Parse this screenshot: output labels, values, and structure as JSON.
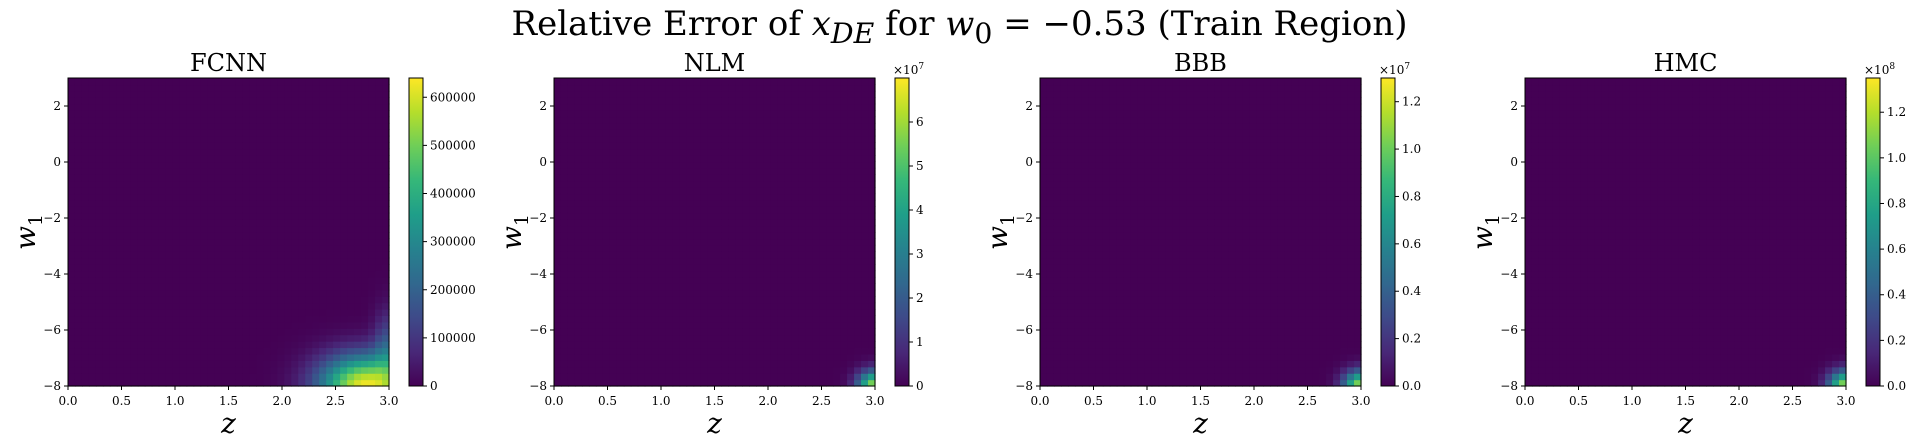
{
  "title_parts": {
    "pre": "Relative Error of ",
    "var": "x",
    "var_sub": "DE",
    "mid": " for ",
    "param": "w",
    "param_sub": "0",
    "post": " = −0.53 (Train Region)"
  },
  "chart_data": [
    {
      "type": "heatmap",
      "title": "FCNN",
      "xlabel": "z",
      "ylabel": "w",
      "ylabel_sub": "1",
      "xlim": [
        0,
        3.0
      ],
      "ylim": [
        -8,
        3
      ],
      "xticks": [
        "0.0",
        "0.5",
        "1.0",
        "1.5",
        "2.0",
        "2.5",
        "3.0"
      ],
      "yticks": [
        "−8",
        "−6",
        "−4",
        "−2",
        "0",
        "2"
      ],
      "colorbar": {
        "min": 0,
        "max": 640000,
        "multiplier": "",
        "ticks": [
          "0",
          "100000",
          "200000",
          "300000",
          "400000",
          "500000",
          "600000"
        ],
        "tick_values": [
          0,
          100000,
          200000,
          300000,
          400000,
          500000,
          600000
        ]
      },
      "hotspot": {
        "z_center": 2.78,
        "w1_center": -8.0,
        "peak_fraction": 0.98,
        "spread": "wide"
      }
    },
    {
      "type": "heatmap",
      "title": "NLM",
      "xlabel": "z",
      "ylabel": "w",
      "ylabel_sub": "1",
      "xlim": [
        0,
        3.0
      ],
      "ylim": [
        -8,
        3
      ],
      "xticks": [
        "0.0",
        "0.5",
        "1.0",
        "1.5",
        "2.0",
        "2.5",
        "3.0"
      ],
      "yticks": [
        "−8",
        "−6",
        "−4",
        "−2",
        "0",
        "2"
      ],
      "colorbar": {
        "min": 0,
        "max": 7,
        "multiplier": "×10",
        "multiplier_exp": "7",
        "ticks": [
          "0",
          "1",
          "2",
          "3",
          "4",
          "5",
          "6"
        ],
        "tick_values": [
          0,
          1,
          2,
          3,
          4,
          5,
          6
        ]
      },
      "hotspot": {
        "z_center": 3.0,
        "w1_center": -8.0,
        "peak_fraction": 0.85,
        "spread": "narrow"
      }
    },
    {
      "type": "heatmap",
      "title": "BBB",
      "xlabel": "z",
      "ylabel": "w",
      "ylabel_sub": "1",
      "xlim": [
        0,
        3.0
      ],
      "ylim": [
        -8,
        3
      ],
      "xticks": [
        "0.0",
        "0.5",
        "1.0",
        "1.5",
        "2.0",
        "2.5",
        "3.0"
      ],
      "yticks": [
        "−8",
        "−6",
        "−4",
        "−2",
        "0",
        "2"
      ],
      "colorbar": {
        "min": 0,
        "max": 1.3,
        "multiplier": "×10",
        "multiplier_exp": "7",
        "ticks": [
          "0.0",
          "0.2",
          "0.4",
          "0.6",
          "0.8",
          "1.0",
          "1.2"
        ],
        "tick_values": [
          0,
          0.2,
          0.4,
          0.6,
          0.8,
          1.0,
          1.2
        ]
      },
      "hotspot": {
        "z_center": 3.0,
        "w1_center": -8.0,
        "peak_fraction": 0.85,
        "spread": "narrow"
      }
    },
    {
      "type": "heatmap",
      "title": "HMC",
      "xlabel": "z",
      "ylabel": "w",
      "ylabel_sub": "1",
      "xlim": [
        0,
        3.0
      ],
      "ylim": [
        -8,
        3
      ],
      "xticks": [
        "0.0",
        "0.5",
        "1.0",
        "1.5",
        "2.0",
        "2.5",
        "3.0"
      ],
      "yticks": [
        "−8",
        "−6",
        "−4",
        "−2",
        "0",
        "2"
      ],
      "colorbar": {
        "min": 0,
        "max": 1.35,
        "multiplier": "×10",
        "multiplier_exp": "8",
        "ticks": [
          "0.0",
          "0.2",
          "0.4",
          "0.6",
          "0.8",
          "1.0",
          "1.2"
        ],
        "tick_values": [
          0,
          0.2,
          0.4,
          0.6,
          0.8,
          1.0,
          1.2
        ]
      },
      "hotspot": {
        "z_center": 3.0,
        "w1_center": -8.0,
        "peak_fraction": 0.85,
        "spread": "narrow"
      }
    }
  ]
}
